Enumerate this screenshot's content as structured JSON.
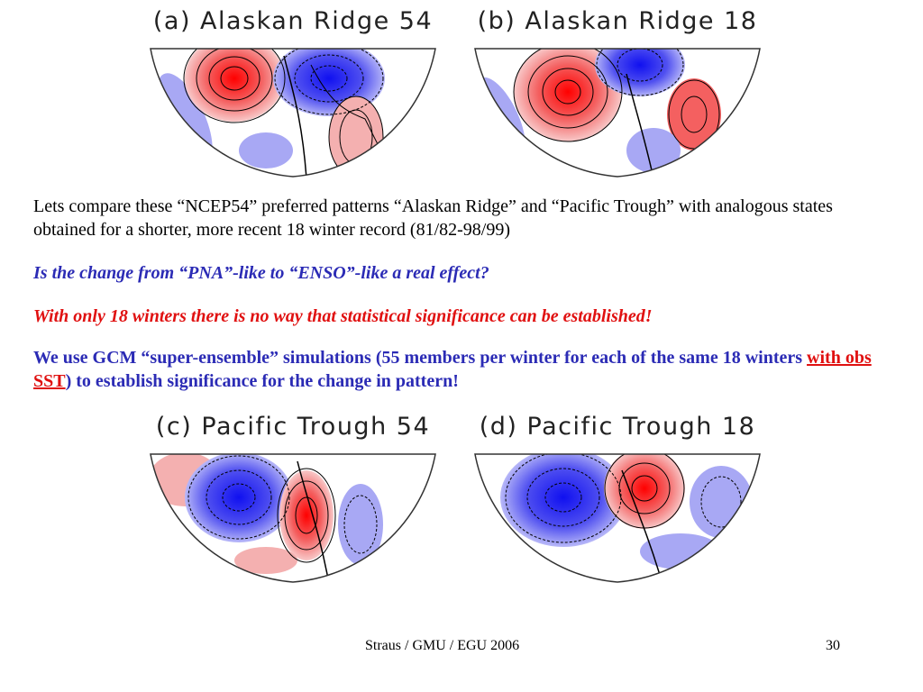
{
  "panels": [
    {
      "id": "a",
      "title": "(a)  Alaskan Ridge 54"
    },
    {
      "id": "b",
      "title": "(b)  Alaskan Ridge 18"
    },
    {
      "id": "c",
      "title": "(c)  Pacific Trough 54"
    },
    {
      "id": "d",
      "title": "(d)  Pacific Trough 18"
    }
  ],
  "text": {
    "para1": "Lets compare these “NCEP54” preferred patterns “Alaskan Ridge” and “Pacific Trough” with analogous states obtained for a shorter, more recent 18 winter record (81/82-98/99)",
    "para2": "Is the change from “PNA”-like to “ENSO”-like a real effect?",
    "para3": "With only 18 winters there is no way that statistical significance can be established!",
    "para4_a": "We use GCM “super-ensemble” simulations (55 members per winter for each of the same 18 winters ",
    "para4_link": "with obs SST",
    "para4_b": ") to establish significance for the change in pattern!"
  },
  "footer": {
    "credit": "Straus / GMU / EGU 2006",
    "page": "30"
  },
  "colors": {
    "positive": "#ff2020",
    "negative": "#2020ff",
    "positive_light": "#f4b0b0",
    "negative_light": "#a8a8f4",
    "body_blue": "#2b2bb5",
    "emphasis_red": "#e01010"
  }
}
